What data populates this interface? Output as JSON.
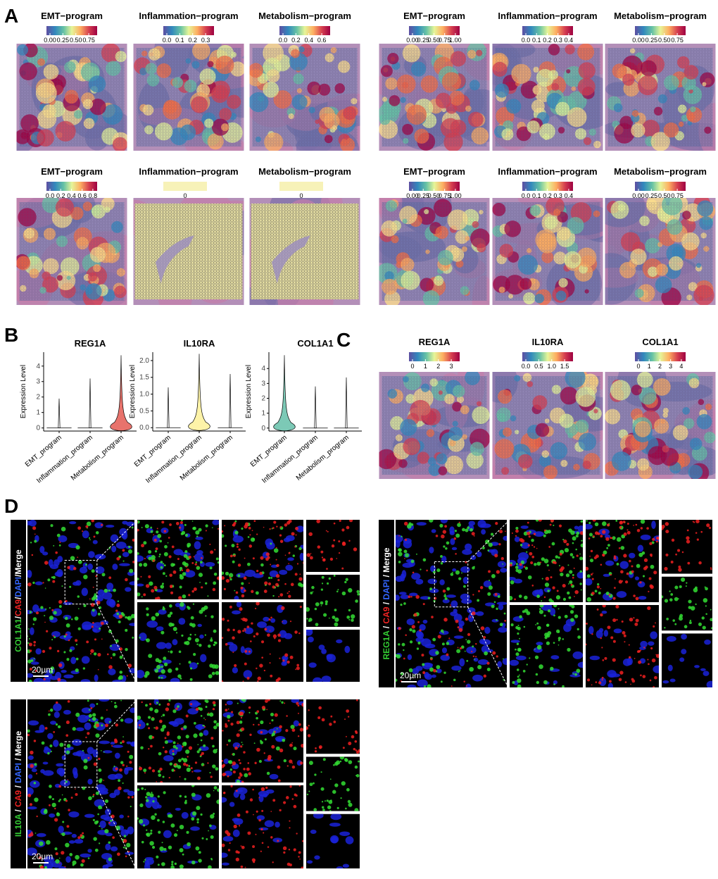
{
  "panel_labels": [
    "A",
    "B",
    "C",
    "D"
  ],
  "spatial_maps_A": [
    {
      "title": "EMT−program",
      "ticks": [
        "0.00",
        "0.25",
        "0.50",
        "0.75"
      ]
    },
    {
      "title": "Inflammation−program",
      "ticks": [
        "0.0",
        "0.1",
        "0.2",
        "0.3"
      ]
    },
    {
      "title": "Metabolism−program",
      "ticks": [
        "0.0",
        "0.2",
        "0.4",
        "0.6"
      ]
    },
    {
      "title": "EMT−program",
      "ticks": [
        "0.00",
        "0.25",
        "0.50",
        "0.75",
        "1.00"
      ]
    },
    {
      "title": "Inflammation−program",
      "ticks": [
        "0.0",
        "0.1",
        "0.2",
        "0.3",
        "0.4"
      ]
    },
    {
      "title": "Metabolism−program",
      "ticks": [
        "0.00",
        "0.25",
        "0.50",
        "0.75"
      ]
    },
    {
      "title": "EMT−program",
      "ticks": [
        "0.0",
        "0.2",
        "0.4",
        "0.6",
        "0.8"
      ]
    },
    {
      "title": "Inflammation−program",
      "ticks": [
        "0"
      ]
    },
    {
      "title": "Metabolism−program",
      "ticks": [
        "0"
      ]
    },
    {
      "title": "EMT−program",
      "ticks": [
        "0.00",
        "0.25",
        "0.50",
        "0.75",
        "1.00"
      ]
    },
    {
      "title": "Inflammation−program",
      "ticks": [
        "0.0",
        "0.1",
        "0.2",
        "0.3",
        "0.4"
      ]
    },
    {
      "title": "Metabolism−program",
      "ticks": [
        "0.00",
        "0.25",
        "0.50",
        "0.75"
      ]
    }
  ],
  "violins_B": {
    "ylabel": "Expression Level",
    "categories": [
      "EMT_program",
      "Inflammation_program",
      "Metabolism_program"
    ],
    "plots": [
      {
        "title": "REG1A",
        "ylim": [
          -0.2,
          4.9
        ],
        "yticks": [
          0,
          1,
          2,
          3,
          4
        ],
        "maxima": [
          1.9,
          3.2,
          4.7
        ],
        "colors": [
          "#ffffff",
          "#ffffff",
          "#e8736c"
        ]
      },
      {
        "title": "IL10RA",
        "ylim": [
          -0.1,
          2.25
        ],
        "yticks": [
          {
            "value": 0,
            "label": "0.0"
          },
          {
            "value": 0.5,
            "label": "0.5"
          },
          {
            "value": 1,
            "label": "1.0"
          },
          {
            "value": 1.5,
            "label": "1.5"
          },
          {
            "value": 2,
            "label": "2.0"
          }
        ],
        "maxima": [
          1.2,
          2.2,
          1.6
        ],
        "colors": [
          "#ffffff",
          "#fdf3a8",
          "#ffffff"
        ]
      },
      {
        "title": "COL1A1",
        "ylim": [
          -0.2,
          5.1
        ],
        "yticks": [
          0,
          1,
          2,
          3,
          4
        ],
        "maxima": [
          4.9,
          2.8,
          3.4
        ],
        "colors": [
          "#7cc9b6",
          "#ffffff",
          "#ffffff"
        ]
      }
    ]
  },
  "spatial_maps_C": [
    {
      "title": "REG1A",
      "ticks": [
        "0",
        "1",
        "2",
        "3"
      ]
    },
    {
      "title": "IL10RA",
      "ticks": [
        "0.0",
        "0.5",
        "1.0",
        "1.5"
      ]
    },
    {
      "title": "COL1A1",
      "ticks": [
        "0",
        "1",
        "2",
        "3",
        "4"
      ]
    }
  ],
  "microscopy_D": [
    {
      "label": [
        {
          "text": "COL1A1",
          "color": "#33cc33"
        },
        {
          "text": "/",
          "color": "#ffffff"
        },
        {
          "text": "CA9",
          "color": "#ee2222"
        },
        {
          "text": "/",
          "color": "#ffffff"
        },
        {
          "text": "DAPI",
          "color": "#3366ff"
        },
        {
          "text": "/Merge",
          "color": "#ffffff"
        }
      ],
      "scale_bar": "20µm"
    },
    {
      "label": [
        {
          "text": "REG1A",
          "color": "#33cc33"
        },
        {
          "text": " / ",
          "color": "#ffffff"
        },
        {
          "text": "CA9",
          "color": "#ee2222"
        },
        {
          "text": " / ",
          "color": "#ffffff"
        },
        {
          "text": "DAPI",
          "color": "#3366ff"
        },
        {
          "text": " / Merge",
          "color": "#ffffff"
        }
      ],
      "scale_bar": "20µm"
    },
    {
      "label": [
        {
          "text": "IL10A",
          "color": "#33cc33"
        },
        {
          "text": " / ",
          "color": "#ffffff"
        },
        {
          "text": "CA9",
          "color": "#ee2222"
        },
        {
          "text": " / ",
          "color": "#ffffff"
        },
        {
          "text": "DAPI",
          "color": "#3366ff"
        },
        {
          "text": " / Merge",
          "color": "#ffffff"
        }
      ],
      "scale_bar": "20µm"
    }
  ]
}
